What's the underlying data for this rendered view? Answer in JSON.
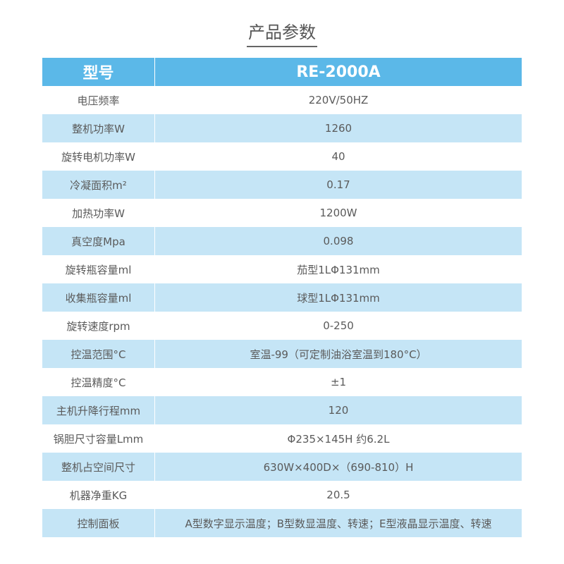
{
  "title": "产品参数",
  "colors": {
    "header": "#5bb8e8",
    "alt_row": "#c5e5f6"
  },
  "header": {
    "key": "型号",
    "value": "RE-2000A"
  },
  "rows": [
    {
      "key": "电压频率",
      "value": "220V/50HZ"
    },
    {
      "key": "整机功率W",
      "value": "1260"
    },
    {
      "key": "旋转电机功率W",
      "value": "40"
    },
    {
      "key": "冷凝面积m²",
      "value": "0.17"
    },
    {
      "key": "加热功率W",
      "value": "1200W"
    },
    {
      "key": "真空度Mpa",
      "value": "0.098"
    },
    {
      "key": "旋转瓶容量ml",
      "value": "茄型1LΦ131mm"
    },
    {
      "key": "收集瓶容量ml",
      "value": "球型1LΦ131mm"
    },
    {
      "key": "旋转速度rpm",
      "value": "0-250"
    },
    {
      "key": "控温范围°C",
      "value": "室温-99（可定制油浴室温到180°C）"
    },
    {
      "key": "控温精度°C",
      "value": "±1"
    },
    {
      "key": "主机升降行程mm",
      "value": "120"
    },
    {
      "key": "锅胆尺寸容量Lmm",
      "value": "Φ235×145H  约6.2L"
    },
    {
      "key": "整机占空间尺寸",
      "value": "630W×400D×（690-810）H"
    },
    {
      "key": "机器净重KG",
      "value": "20.5"
    },
    {
      "key": "控制面板",
      "value": "A型数字显示温度；B型数显温度、转速；E型液晶显示温度、转速"
    }
  ]
}
